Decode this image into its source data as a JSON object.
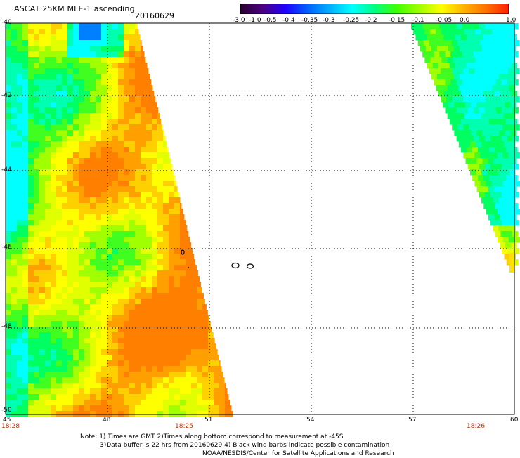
{
  "header": {
    "title": "ASCAT 25KM MLE-1 ascending",
    "date": "20160629"
  },
  "colorbar": {
    "labels": [
      "-3.0",
      "-1.0",
      "-0.5",
      "-0.4",
      "-0.35",
      "-0.3",
      "-0.25",
      "-0.2",
      "-0.15",
      "-0.1",
      "-0.05",
      "0.0",
      "1.0"
    ],
    "colors": [
      "#2a0030",
      "#4b0082",
      "#1e00ff",
      "#0060ff",
      "#00b0ff",
      "#00ffff",
      "#00ff80",
      "#40ff00",
      "#a0ff00",
      "#ffff00",
      "#ffb000",
      "#ff7000",
      "#ff2000"
    ]
  },
  "axes": {
    "lat_labels": [
      "-40",
      "-42",
      "-44",
      "-46",
      "-48",
      "-50"
    ],
    "lon_labels": [
      "45",
      "48",
      "51",
      "54",
      "57",
      "60"
    ],
    "time_labels": [
      "18:28",
      "18:25",
      "18:26"
    ]
  },
  "notes": {
    "line1": "Note: 1) Times are GMT 2)Times along bottom correspond to measurement at -45S",
    "line2": "3)Data buffer is 22 hrs from 20160629 4) Black wind barbs indicate possible contamination",
    "line3": "NOAA/NESDIS/Center for Satellite Applications and Research"
  },
  "map_data": {
    "lat_range": [
      -50,
      -40
    ],
    "lon_range": [
      45,
      60
    ],
    "palette": [
      "#00ffff",
      "#00ffb0",
      "#00ff60",
      "#40ff20",
      "#a0ff00",
      "#e0ff00",
      "#ffff00",
      "#ffd000",
      "#ffa000",
      "#ff8000"
    ]
  }
}
